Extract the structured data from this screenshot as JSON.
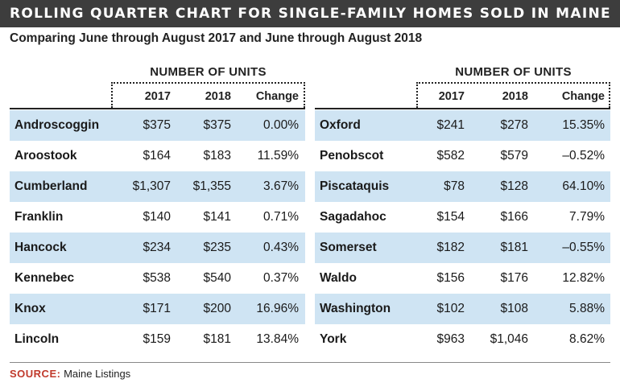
{
  "chart_data": {
    "type": "table",
    "title": "ROLLING QUARTER CHART FOR SINGLE-FAMILY HOMES SOLD IN MAINE",
    "subtitle": "Comparing June through August 2017 and June through August 2018",
    "group_header": "NUMBER OF UNITS",
    "columns": [
      "2017",
      "2018",
      "Change"
    ],
    "tables": [
      {
        "rows": [
          {
            "county": "Androscoggin",
            "y2017": "$375",
            "y2018": "$375",
            "change": "0.00%"
          },
          {
            "county": "Aroostook",
            "y2017": "$164",
            "y2018": "$183",
            "change": "11.59%"
          },
          {
            "county": "Cumberland",
            "y2017": "$1,307",
            "y2018": "$1,355",
            "change": "3.67%"
          },
          {
            "county": "Franklin",
            "y2017": "$140",
            "y2018": "$141",
            "change": "0.71%"
          },
          {
            "county": "Hancock",
            "y2017": "$234",
            "y2018": "$235",
            "change": "0.43%"
          },
          {
            "county": "Kennebec",
            "y2017": "$538",
            "y2018": "$540",
            "change": "0.37%"
          },
          {
            "county": "Knox",
            "y2017": "$171",
            "y2018": "$200",
            "change": "16.96%"
          },
          {
            "county": "Lincoln",
            "y2017": "$159",
            "y2018": "$181",
            "change": "13.84%"
          }
        ]
      },
      {
        "rows": [
          {
            "county": "Oxford",
            "y2017": "$241",
            "y2018": "$278",
            "change": "15.35%"
          },
          {
            "county": "Penobscot",
            "y2017": "$582",
            "y2018": "$579",
            "change": "–0.52%"
          },
          {
            "county": "Piscataquis",
            "y2017": "$78",
            "y2018": "$128",
            "change": "64.10%"
          },
          {
            "county": "Sagadahoc",
            "y2017": "$154",
            "y2018": "$166",
            "change": "7.79%"
          },
          {
            "county": "Somerset",
            "y2017": "$182",
            "y2018": "$181",
            "change": "–0.55%"
          },
          {
            "county": "Waldo",
            "y2017": "$156",
            "y2018": "$176",
            "change": "12.82%"
          },
          {
            "county": "Washington",
            "y2017": "$102",
            "y2018": "$108",
            "change": "5.88%"
          },
          {
            "county": "York",
            "y2017": "$963",
            "y2018": "$1,046",
            "change": "8.62%"
          }
        ]
      }
    ],
    "shaded_row_color": "#cfe4f3",
    "banner_color": "#3d3d3d"
  },
  "source": {
    "label": "SOURCE:",
    "text": "Maine Listings",
    "label_color": "#c0392b"
  }
}
